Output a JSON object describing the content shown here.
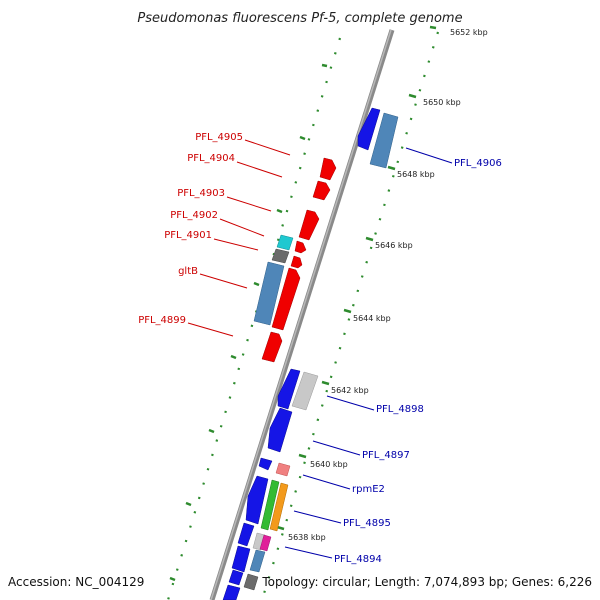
{
  "title": "Pseudomonas fluorescens Pf-5, complete genome",
  "accession": "Accession: NC_004129",
  "topology": "Topology: circular; Length: 7,074,893 bp; Genes: 6,226",
  "colors": {
    "backbone": "#8a8a8a",
    "dots": "#2e8b2e",
    "blue": "#1515e6",
    "steel": "#4f86b8",
    "red": "#f00000",
    "cyan": "#1fc8d0",
    "dark": "#6b6b6b",
    "light_gray": "#c8c8c8",
    "salmon": "#f08080",
    "green": "#33bb33",
    "orange": "#f39a1c",
    "magenta": "#e0209a",
    "red_label": "#cc0000",
    "blue_label": "#0000aa"
  },
  "kbp_labels": [
    "5652 kbp",
    "5650 kbp",
    "5648 kbp",
    "5646 kbp",
    "5644 kbp",
    "5642 kbp",
    "5640 kbp",
    "5638 kbp"
  ],
  "left_labels": [
    "PFL_4905",
    "PFL_4904",
    "PFL_4903",
    "PFL_4902",
    "PFL_4901",
    "gltB",
    "PFL_4899"
  ],
  "right_labels": [
    "PFL_4906",
    "PFL_4898",
    "PFL_4897",
    "rpmE2",
    "PFL_4895",
    "PFL_4894"
  ]
}
